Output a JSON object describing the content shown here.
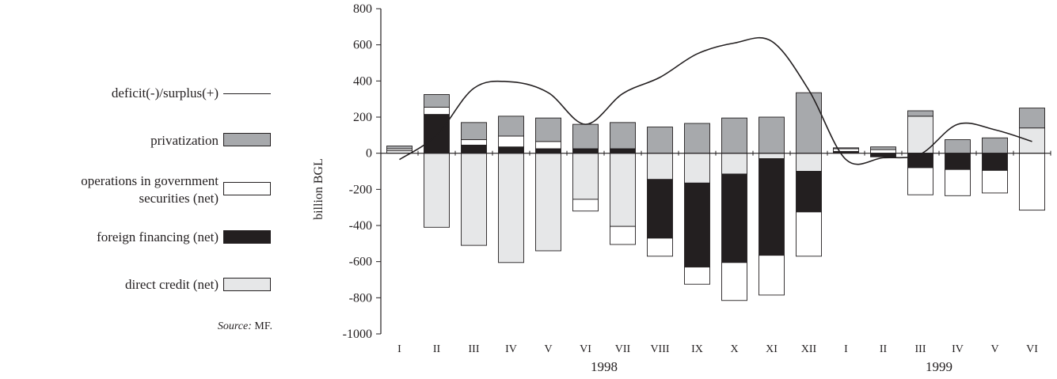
{
  "legend": {
    "line": "deficit(-)/surplus(+)",
    "privatization": "privatization",
    "gov_sec_line1": "operations in government",
    "gov_sec_line2": "securities (net)",
    "foreign": "foreign financing  (net)",
    "direct": "direct credit (net)"
  },
  "source": {
    "label": "Source:",
    "text": "MF."
  },
  "colors": {
    "privatization": "#a7a9ac",
    "gov_securities": "#ffffff",
    "foreign_financing": "#231f20",
    "direct_credit": "#e6e7e8",
    "line": "#231f20"
  },
  "chart_data": {
    "type": "bar",
    "stacked": true,
    "ylabel": "billion BGL",
    "ylim": [
      -1000,
      800
    ],
    "yticks": [
      -1000,
      -800,
      -600,
      -400,
      -200,
      0,
      200,
      400,
      600,
      800
    ],
    "categories": [
      "I",
      "II",
      "III",
      "IV",
      "V",
      "VI",
      "VII",
      "VIII",
      "IX",
      "X",
      "XI",
      "XII",
      "I",
      "II",
      "III",
      "IV",
      "V",
      "VI"
    ],
    "year_labels": [
      {
        "label": "1998",
        "from": 0,
        "to": 11
      },
      {
        "label": "1999",
        "from": 12,
        "to": 17
      }
    ],
    "series": [
      {
        "name": "direct credit (net)",
        "key": "direct_credit",
        "values": [
          15,
          -410,
          -510,
          -605,
          -540,
          -255,
          -405,
          -145,
          -165,
          -115,
          -30,
          -100,
          0,
          0,
          205,
          0,
          0,
          140
        ]
      },
      {
        "name": "foreign financing  (net)",
        "key": "foreign_financing",
        "values": [
          0,
          215,
          45,
          35,
          25,
          25,
          25,
          -325,
          -465,
          -490,
          -535,
          -225,
          10,
          -20,
          -80,
          -90,
          -95,
          0
        ]
      },
      {
        "name": "operations in government securities (net)",
        "key": "gov_securities",
        "values": [
          10,
          40,
          30,
          60,
          40,
          -65,
          -100,
          -100,
          -95,
          -210,
          -220,
          -245,
          15,
          20,
          -150,
          -145,
          -125,
          -315
        ]
      },
      {
        "name": "privatization",
        "key": "privatization",
        "values": [
          15,
          70,
          95,
          110,
          130,
          135,
          145,
          145,
          165,
          195,
          200,
          335,
          5,
          15,
          30,
          75,
          85,
          110
        ]
      }
    ],
    "line": {
      "name": "deficit(-)/surplus(+)",
      "values": [
        -35,
        100,
        360,
        395,
        335,
        160,
        330,
        420,
        550,
        610,
        620,
        350,
        -35,
        -25,
        -5,
        160,
        130,
        65
      ]
    }
  }
}
